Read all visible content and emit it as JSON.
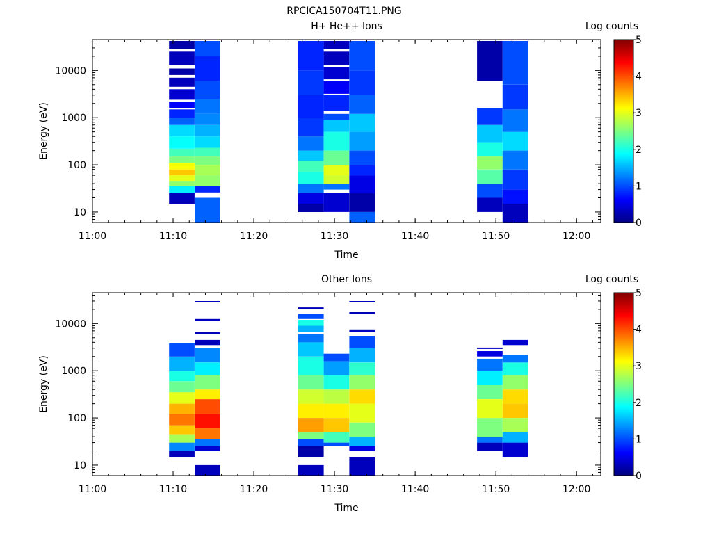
{
  "page_title": "RPCICA150704T11.PNG",
  "colors": {
    "colormap": [
      "#00007f",
      "#0000ff",
      "#007fff",
      "#00ffff",
      "#7fff7f",
      "#ffff00",
      "#ff7f00",
      "#ff0000",
      "#7f0000"
    ],
    "axis": "#000000",
    "background": "#ffffff"
  },
  "chart_data": [
    {
      "type": "heatmap",
      "title": "H+ He++ Ions",
      "xlabel": "Time",
      "ylabel": "Energy (eV)",
      "y_scale": "log",
      "ylim": [
        6,
        45000
      ],
      "xlim": [
        "11:00",
        "12:03"
      ],
      "x_ticks": [
        "11:00",
        "11:10",
        "11:20",
        "11:30",
        "11:40",
        "11:50",
        "12:00"
      ],
      "y_ticks": [
        "10",
        "100",
        "1000",
        "10000"
      ],
      "colorbar": {
        "label": "Log counts",
        "range": [
          0,
          5
        ],
        "ticks": [
          "0",
          "1",
          "2",
          "3",
          "4",
          "5"
        ]
      },
      "columns": [
        {
          "start": "11:09:30",
          "end": "11:12:40",
          "levels": [
            [
              15,
              25,
              0.3
            ],
            [
              25,
              35,
              1.8
            ],
            [
              35,
              45,
              2.6
            ],
            [
              45,
              60,
              3.0
            ],
            [
              60,
              80,
              3.4
            ],
            [
              80,
              110,
              3.1
            ],
            [
              110,
              150,
              2.5
            ],
            [
              150,
              220,
              2.2
            ],
            [
              220,
              400,
              1.9
            ],
            [
              400,
              700,
              1.7
            ],
            [
              700,
              1000,
              1.1
            ],
            [
              1000,
              1500,
              0.8
            ],
            [
              1600,
              2200,
              0.6
            ],
            [
              2400,
              4000,
              0.4
            ],
            [
              4500,
              7000,
              0.3
            ],
            [
              8000,
              11000,
              0.2
            ],
            [
              13000,
              25000,
              0.3
            ],
            [
              28000,
              42000,
              0.2
            ]
          ]
        },
        {
          "start": "11:12:40",
          "end": "11:15:50",
          "levels": [
            [
              6,
              20,
              1.1
            ],
            [
              26,
              35,
              0.8
            ],
            [
              35,
              60,
              2.6
            ],
            [
              60,
              100,
              2.7
            ],
            [
              100,
              150,
              2.5
            ],
            [
              150,
              230,
              2.2
            ],
            [
              230,
              400,
              1.7
            ],
            [
              400,
              700,
              1.5
            ],
            [
              700,
              1200,
              1.3
            ],
            [
              1200,
              2500,
              1.2
            ],
            [
              2500,
              6000,
              1.0
            ],
            [
              6000,
              20000,
              0.8
            ],
            [
              20000,
              42000,
              1.0
            ]
          ]
        },
        {
          "start": "11:25:30",
          "end": "11:28:40",
          "levels": [
            [
              10,
              15,
              0.2
            ],
            [
              15,
              25,
              0.5
            ],
            [
              25,
              40,
              1.2
            ],
            [
              40,
              70,
              2.0
            ],
            [
              70,
              120,
              2.2
            ],
            [
              120,
              200,
              1.6
            ],
            [
              200,
              400,
              1.2
            ],
            [
              400,
              1000,
              0.9
            ],
            [
              1000,
              3000,
              0.8
            ],
            [
              3000,
              10000,
              0.9
            ],
            [
              10000,
              42000,
              0.8
            ]
          ]
        },
        {
          "start": "11:28:40",
          "end": "11:31:50",
          "levels": [
            [
              10,
              25,
              0.4
            ],
            [
              30,
              40,
              1.2
            ],
            [
              40,
              60,
              2.9
            ],
            [
              60,
              100,
              3.0
            ],
            [
              100,
              200,
              2.4
            ],
            [
              200,
              500,
              2.0
            ],
            [
              500,
              900,
              1.6
            ],
            [
              900,
              1200,
              1.0
            ],
            [
              1400,
              3000,
              0.8
            ],
            [
              3200,
              6000,
              0.6
            ],
            [
              6500,
              12000,
              0.4
            ],
            [
              13000,
              25000,
              0.3
            ],
            [
              28000,
              42000,
              0.3
            ]
          ]
        },
        {
          "start": "11:31:50",
          "end": "11:35:00",
          "levels": [
            [
              6,
              10,
              1.1
            ],
            [
              10,
              25,
              0.2
            ],
            [
              25,
              60,
              0.5
            ],
            [
              60,
              100,
              0.8
            ],
            [
              100,
              200,
              1.0
            ],
            [
              200,
              500,
              1.4
            ],
            [
              500,
              1200,
              1.6
            ],
            [
              1200,
              3000,
              1.1
            ],
            [
              3000,
              10000,
              0.9
            ],
            [
              10000,
              42000,
              1.0
            ]
          ]
        },
        {
          "start": "11:47:40",
          "end": "11:50:50",
          "levels": [
            [
              10,
              20,
              0.3
            ],
            [
              20,
              40,
              1.0
            ],
            [
              40,
              80,
              2.3
            ],
            [
              80,
              150,
              2.6
            ],
            [
              150,
              300,
              2.0
            ],
            [
              300,
              700,
              1.6
            ],
            [
              700,
              1600,
              0.9
            ],
            [
              6000,
              42000,
              0.2
            ]
          ]
        },
        {
          "start": "11:50:50",
          "end": "11:54:00",
          "levels": [
            [
              6,
              15,
              0.3
            ],
            [
              15,
              30,
              0.7
            ],
            [
              30,
              80,
              0.9
            ],
            [
              80,
              200,
              1.2
            ],
            [
              200,
              500,
              1.7
            ],
            [
              500,
              1500,
              1.2
            ],
            [
              1500,
              5000,
              0.9
            ],
            [
              5000,
              42000,
              1.0
            ]
          ]
        }
      ]
    },
    {
      "type": "heatmap",
      "title": "Other Ions",
      "xlabel": "Time",
      "ylabel": "Energy (eV)",
      "y_scale": "log",
      "ylim": [
        6,
        45000
      ],
      "xlim": [
        "11:00",
        "12:03"
      ],
      "x_ticks": [
        "11:00",
        "11:10",
        "11:20",
        "11:30",
        "11:40",
        "11:50",
        "12:00"
      ],
      "y_ticks": [
        "10",
        "100",
        "1000",
        "10000"
      ],
      "colorbar": {
        "label": "Log counts",
        "range": [
          0,
          5
        ],
        "ticks": [
          "0",
          "1",
          "2",
          "3",
          "4",
          "5"
        ]
      },
      "columns": [
        {
          "start": "11:09:30",
          "end": "11:12:40",
          "levels": [
            [
              15,
              20,
              0.3
            ],
            [
              20,
              30,
              1.3
            ],
            [
              30,
              45,
              2.7
            ],
            [
              45,
              70,
              3.4
            ],
            [
              70,
              120,
              3.8
            ],
            [
              120,
              200,
              3.5
            ],
            [
              200,
              350,
              3.0
            ],
            [
              350,
              600,
              2.4
            ],
            [
              600,
              1000,
              2.0
            ],
            [
              1000,
              2000,
              1.5
            ],
            [
              2000,
              3800,
              1.0
            ]
          ]
        },
        {
          "start": "11:12:40",
          "end": "11:15:50",
          "levels": [
            [
              6,
              10,
              0.3
            ],
            [
              20,
              25,
              0.4
            ],
            [
              25,
              35,
              1.2
            ],
            [
              35,
              60,
              3.8
            ],
            [
              60,
              120,
              4.3
            ],
            [
              120,
              250,
              4.0
            ],
            [
              250,
              400,
              3.2
            ],
            [
              400,
              800,
              2.5
            ],
            [
              800,
              1500,
              1.8
            ],
            [
              1500,
              3000,
              1.3
            ],
            [
              3500,
              4500,
              0.3
            ],
            [
              6000,
              6500,
              0.3
            ],
            [
              11500,
              12500,
              0.3
            ],
            [
              28000,
              30000,
              0.3
            ]
          ]
        },
        {
          "start": "11:25:30",
          "end": "11:28:40",
          "levels": [
            [
              6,
              10,
              0.3
            ],
            [
              15,
              25,
              0.2
            ],
            [
              25,
              35,
              1.0
            ],
            [
              35,
              50,
              2.5
            ],
            [
              50,
              100,
              3.6
            ],
            [
              100,
              200,
              3.2
            ],
            [
              200,
              400,
              2.9
            ],
            [
              400,
              800,
              2.4
            ],
            [
              800,
              2000,
              2.0
            ],
            [
              2000,
              4000,
              1.6
            ],
            [
              4000,
              6000,
              1.2
            ],
            [
              6500,
              9000,
              1.5
            ],
            [
              9000,
              12000,
              2.0
            ],
            [
              12500,
              16000,
              1.0
            ],
            [
              20000,
              22000,
              0.3
            ]
          ]
        },
        {
          "start": "11:28:40",
          "end": "11:31:50",
          "levels": [
            [
              25,
              30,
              1.0
            ],
            [
              30,
              50,
              2.2
            ],
            [
              50,
              100,
              3.4
            ],
            [
              100,
              200,
              3.2
            ],
            [
              200,
              400,
              2.8
            ],
            [
              400,
              800,
              2.0
            ],
            [
              800,
              1600,
              1.4
            ],
            [
              1600,
              2300,
              1.0
            ]
          ]
        },
        {
          "start": "11:31:50",
          "end": "11:35:00",
          "levels": [
            [
              6,
              15,
              0.3
            ],
            [
              20,
              25,
              0.5
            ],
            [
              25,
              40,
              1.5
            ],
            [
              40,
              80,
              2.5
            ],
            [
              80,
              200,
              3.0
            ],
            [
              200,
              400,
              3.3
            ],
            [
              400,
              800,
              2.6
            ],
            [
              800,
              1500,
              2.1
            ],
            [
              1500,
              3000,
              1.5
            ],
            [
              3000,
              5500,
              1.0
            ],
            [
              6500,
              7500,
              0.3
            ],
            [
              16000,
              18000,
              0.3
            ],
            [
              28000,
              30000,
              0.3
            ]
          ]
        },
        {
          "start": "11:47:40",
          "end": "11:50:50",
          "levels": [
            [
              20,
              30,
              0.3
            ],
            [
              30,
              40,
              1.2
            ],
            [
              40,
              100,
              2.5
            ],
            [
              100,
              250,
              3.0
            ],
            [
              250,
              500,
              2.4
            ],
            [
              500,
              1000,
              1.8
            ],
            [
              1000,
              1800,
              1.2
            ],
            [
              2000,
              2600,
              0.5
            ],
            [
              2900,
              3100,
              0.3
            ]
          ]
        },
        {
          "start": "11:50:50",
          "end": "11:54:00",
          "levels": [
            [
              15,
              30,
              0.4
            ],
            [
              30,
              50,
              1.5
            ],
            [
              50,
              100,
              2.7
            ],
            [
              100,
              200,
              3.4
            ],
            [
              200,
              400,
              3.3
            ],
            [
              400,
              800,
              2.6
            ],
            [
              800,
              1500,
              2.0
            ],
            [
              1500,
              2200,
              1.2
            ],
            [
              3500,
              4500,
              0.4
            ]
          ]
        }
      ]
    }
  ]
}
